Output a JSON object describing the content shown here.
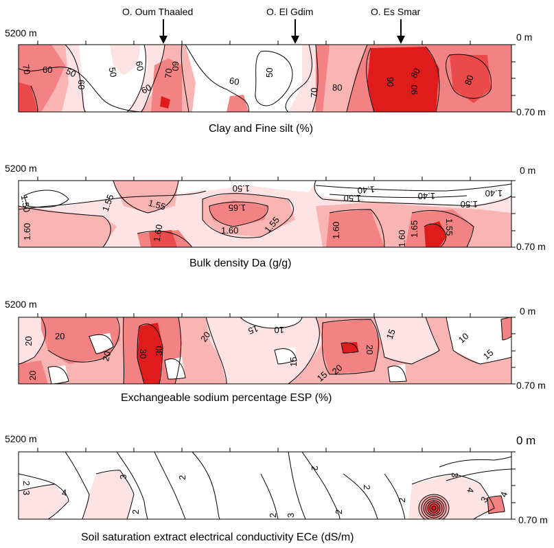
{
  "wadis": [
    {
      "name": "O. Oum Thaaled",
      "marker": "down-arrow"
    },
    {
      "name": "O. El Gdim",
      "marker": "down-arrow"
    },
    {
      "name": "O. Es Smar",
      "marker": "down-arrow"
    }
  ],
  "colors": {
    "band1": "#ffffff",
    "band2": "#fde3e3",
    "band3": "#f9b4b4",
    "band4": "#f38282",
    "band5": "#ea4a4a",
    "band6": "#e01b1b",
    "line": "#000000"
  },
  "chart_data": [
    {
      "type": "heatmap",
      "title": "Clay and Fine silt (%)",
      "distance_label": "5200 m",
      "depth_labels": [
        "0 m",
        "0.70 m"
      ],
      "ylim_m": [
        0,
        0.7
      ],
      "contour_labels": [
        "70",
        "60",
        "50",
        "60",
        "50",
        "60",
        "70",
        "60",
        "60",
        "50",
        "60",
        "70",
        "80",
        "90",
        "90",
        "80",
        "80"
      ]
    },
    {
      "type": "heatmap",
      "title": "Bulk density Da (g/g)",
      "distance_label": "5200 m",
      "depth_labels": [
        "0 m",
        "0.70 m"
      ],
      "ylim_m": [
        0,
        0.7
      ],
      "contour_labels": [
        "1.50",
        "1.55",
        "1.55",
        "1.60",
        "1.65",
        "1.60",
        "1.55",
        "1.50",
        "1.40",
        "1.50",
        "1.40",
        "1.50",
        "1.40",
        "1.60",
        "1.60",
        "1.65",
        "1.55",
        "1.60"
      ]
    },
    {
      "type": "heatmap",
      "title": "Exchangeable sodium percentage ESP (%)",
      "distance_label": "5200 m",
      "depth_labels": [
        "0 m",
        "0.70 m"
      ],
      "ylim_m": [
        0,
        0.7
      ],
      "contour_labels": [
        "20",
        "20",
        "20",
        "20",
        "30",
        "30",
        "20",
        "15",
        "10",
        "15",
        "15",
        "20",
        "20",
        "15",
        "10",
        "15"
      ]
    },
    {
      "type": "heatmap",
      "title": "Soil saturation extract electrical conductivity ECe (dS/m)",
      "distance_label": "5200 m",
      "depth_labels": [
        "0 m",
        "0.70 m"
      ],
      "ylim_m": [
        0,
        0.7
      ],
      "contour_labels": [
        "2",
        "3",
        "4",
        "3",
        "2",
        "2",
        "2",
        "3",
        "2",
        "2",
        "2",
        "2",
        "3",
        "4",
        "3",
        "4"
      ]
    }
  ]
}
